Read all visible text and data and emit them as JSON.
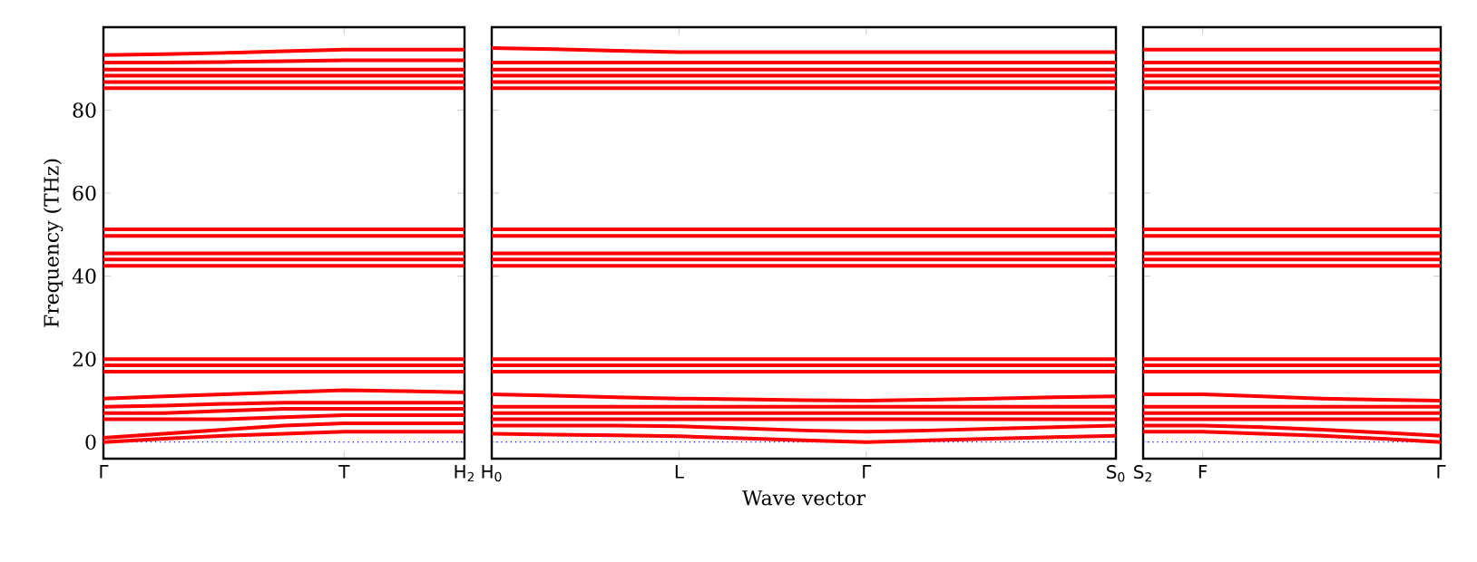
{
  "chart_data": [
    {
      "type": "line",
      "ylabel": "Frequency (THz)",
      "color": "#ff0000",
      "categories": [
        "Γ",
        null,
        null,
        null,
        "T",
        null,
        "H$_{2}$"
      ],
      "ylim": [
        -4,
        100
      ],
      "yticks": [
        0,
        20,
        40,
        60,
        80
      ],
      "ref_lines": [
        {
          "axis": "y",
          "value": 0,
          "color": "#0000ff",
          "line_style": "dotted"
        }
      ],
      "series": [
        {
          "values": [
            0,
            0.8,
            1.5,
            2,
            2.5,
            2.5,
            2.5
          ]
        },
        {
          "values": [
            1,
            2,
            3,
            4,
            4.5,
            4.5,
            4.5
          ]
        },
        {
          "values": [
            5.5,
            5.5,
            5.5,
            6,
            6.5,
            6.5,
            6.5
          ]
        },
        {
          "values": [
            7,
            7,
            7.5,
            8,
            8,
            8,
            8
          ]
        },
        {
          "values": [
            8.5,
            8.8,
            9.2,
            9.5,
            9.5,
            9.5,
            9.5
          ]
        },
        {
          "values": [
            10.5,
            11,
            11.5,
            12,
            12.5,
            12.3,
            12
          ]
        },
        {
          "values": [
            17,
            17,
            17,
            17,
            17,
            17,
            17
          ]
        },
        {
          "values": [
            18.5,
            18.5,
            18.5,
            18.5,
            18.5,
            18.5,
            18.5
          ]
        },
        {
          "values": [
            20,
            20,
            20,
            20,
            20,
            20,
            20
          ]
        },
        {
          "values": [
            42.5,
            42.5,
            42.5,
            42.5,
            42.5,
            42.5,
            42.5
          ]
        },
        {
          "values": [
            44,
            44,
            44,
            44,
            44,
            44,
            44
          ]
        },
        {
          "values": [
            45.5,
            45.5,
            45.5,
            45.5,
            45.5,
            45.5,
            45.5
          ]
        },
        {
          "values": [
            49.7,
            49.7,
            49.7,
            49.7,
            49.7,
            49.7,
            49.7
          ]
        },
        {
          "values": [
            51.3,
            51.3,
            51.3,
            51.3,
            51.3,
            51.3,
            51.3
          ]
        },
        {
          "values": [
            85.3,
            85.3,
            85.3,
            85.3,
            85.3,
            85.3,
            85.3
          ]
        },
        {
          "values": [
            86.8,
            86.8,
            86.8,
            86.8,
            86.8,
            86.8,
            86.8
          ]
        },
        {
          "values": [
            88.3,
            88.3,
            88.3,
            88.3,
            88.3,
            88.3,
            88.3
          ]
        },
        {
          "values": [
            89.8,
            89.8,
            89.8,
            89.8,
            89.8,
            89.8,
            89.8
          ]
        },
        {
          "values": [
            91.5,
            91.5,
            91.6,
            91.8,
            92,
            92,
            92
          ]
        },
        {
          "values": [
            93.3,
            93.5,
            93.8,
            94.2,
            94.6,
            94.6,
            94.6
          ]
        }
      ]
    },
    {
      "type": "line",
      "xlabel": "Wave vector",
      "color": "#ff0000",
      "categories": [
        "H$_{0}$",
        null,
        null,
        "L",
        null,
        null,
        "Γ",
        null,
        null,
        null,
        "S$_{0}$"
      ],
      "ylim": [
        -4,
        100
      ],
      "tick_labels": "x",
      "yticks": [
        {
          "value": 0,
          "label": null
        },
        {
          "value": 20,
          "label": null
        },
        {
          "value": 40,
          "label": null
        },
        {
          "value": 60,
          "label": null
        },
        {
          "value": 80,
          "label": null
        }
      ],
      "ref_lines": [
        {
          "axis": "y",
          "value": 0,
          "color": "#0000ff",
          "line_style": "dotted"
        }
      ],
      "series": [
        {
          "values": [
            2,
            1.8,
            1.6,
            1.4,
            0.9,
            0.4,
            0,
            0.4,
            0.8,
            1.2,
            1.5
          ]
        },
        {
          "values": [
            4,
            4,
            4,
            3.8,
            3.3,
            2.8,
            2.5,
            2.8,
            3.2,
            3.6,
            4
          ]
        },
        {
          "values": [
            5.5,
            5.5,
            5.5,
            5.5,
            5.5,
            5.5,
            5.5,
            5.5,
            5.5,
            5.5,
            5.5
          ]
        },
        {
          "values": [
            7,
            7,
            7,
            7,
            7,
            7,
            7,
            7,
            7,
            7,
            7
          ]
        },
        {
          "values": [
            8.5,
            8.5,
            8.5,
            8.5,
            8.5,
            8.5,
            8.5,
            8.5,
            8.5,
            8.5,
            8.5
          ]
        },
        {
          "values": [
            11.5,
            11.2,
            10.8,
            10.5,
            10.3,
            10.1,
            10,
            10.2,
            10.5,
            10.8,
            11
          ]
        },
        {
          "values": [
            17,
            17,
            17,
            17,
            17,
            17,
            17,
            17,
            17,
            17,
            17
          ]
        },
        {
          "values": [
            18.5,
            18.5,
            18.5,
            18.5,
            18.5,
            18.5,
            18.5,
            18.5,
            18.5,
            18.5,
            18.5
          ]
        },
        {
          "values": [
            20,
            20,
            20,
            20,
            20,
            20,
            20,
            20,
            20,
            20,
            20
          ]
        },
        {
          "values": [
            42.5,
            42.5,
            42.5,
            42.5,
            42.5,
            42.5,
            42.5,
            42.5,
            42.5,
            42.5,
            42.5
          ]
        },
        {
          "values": [
            44,
            44,
            44,
            44,
            44,
            44,
            44,
            44,
            44,
            44,
            44
          ]
        },
        {
          "values": [
            45.5,
            45.5,
            45.5,
            45.5,
            45.5,
            45.5,
            45.5,
            45.5,
            45.5,
            45.5,
            45.5
          ]
        },
        {
          "values": [
            49.7,
            49.7,
            49.7,
            49.7,
            49.7,
            49.7,
            49.7,
            49.7,
            49.7,
            49.7,
            49.7
          ]
        },
        {
          "values": [
            51.3,
            51.3,
            51.3,
            51.3,
            51.3,
            51.3,
            51.3,
            51.3,
            51.3,
            51.3,
            51.3
          ]
        },
        {
          "values": [
            85.3,
            85.3,
            85.3,
            85.3,
            85.3,
            85.3,
            85.3,
            85.3,
            85.3,
            85.3,
            85.3
          ]
        },
        {
          "values": [
            86.8,
            86.8,
            86.8,
            86.8,
            86.8,
            86.8,
            86.8,
            86.8,
            86.8,
            86.8,
            86.8
          ]
        },
        {
          "values": [
            88.3,
            88.3,
            88.3,
            88.3,
            88.3,
            88.3,
            88.3,
            88.3,
            88.3,
            88.3,
            88.3
          ]
        },
        {
          "values": [
            89.8,
            89.8,
            89.8,
            89.8,
            89.8,
            89.8,
            89.8,
            89.8,
            89.8,
            89.8,
            89.8
          ]
        },
        {
          "values": [
            91.5,
            91.5,
            91.5,
            91.5,
            91.5,
            91.5,
            91.5,
            91.5,
            91.5,
            91.5,
            91.5
          ]
        },
        {
          "values": [
            95,
            94.7,
            94.3,
            94,
            94,
            94,
            94,
            94,
            94,
            94,
            94
          ]
        }
      ]
    },
    {
      "type": "line",
      "color": "#ff0000",
      "categories": [
        "S$_{2}$",
        "F",
        null,
        null,
        null,
        "Γ"
      ],
      "ylim": [
        -4,
        100
      ],
      "tick_labels": "x",
      "yticks": [
        {
          "value": 0,
          "label": null
        },
        {
          "value": 20,
          "label": null
        },
        {
          "value": 40,
          "label": null
        },
        {
          "value": 60,
          "label": null
        },
        {
          "value": 80,
          "label": null
        }
      ],
      "ref_lines": [
        {
          "axis": "y",
          "value": 0,
          "color": "#0000ff",
          "line_style": "dotted"
        }
      ],
      "series": [
        {
          "values": [
            2.5,
            2.5,
            2,
            1.5,
            0.8,
            0
          ]
        },
        {
          "values": [
            4,
            4,
            3.6,
            3,
            2.3,
            1.5
          ]
        },
        {
          "values": [
            5.5,
            5.5,
            5.5,
            5.5,
            5.5,
            5.5
          ]
        },
        {
          "values": [
            7,
            7,
            7,
            7,
            7,
            7
          ]
        },
        {
          "values": [
            8.5,
            8.5,
            8.5,
            8.5,
            8.5,
            8.5
          ]
        },
        {
          "values": [
            11.5,
            11.5,
            11,
            10.5,
            10.2,
            10
          ]
        },
        {
          "values": [
            17,
            17,
            17,
            17,
            17,
            17
          ]
        },
        {
          "values": [
            18.5,
            18.5,
            18.5,
            18.5,
            18.5,
            18.5
          ]
        },
        {
          "values": [
            20,
            20,
            20,
            20,
            20,
            20
          ]
        },
        {
          "values": [
            42.5,
            42.5,
            42.5,
            42.5,
            42.5,
            42.5
          ]
        },
        {
          "values": [
            44,
            44,
            44,
            44,
            44,
            44
          ]
        },
        {
          "values": [
            45.5,
            45.5,
            45.5,
            45.5,
            45.5,
            45.5
          ]
        },
        {
          "values": [
            49.7,
            49.7,
            49.7,
            49.7,
            49.7,
            49.7
          ]
        },
        {
          "values": [
            51.3,
            51.3,
            51.3,
            51.3,
            51.3,
            51.3
          ]
        },
        {
          "values": [
            85.3,
            85.3,
            85.3,
            85.3,
            85.3,
            85.3
          ]
        },
        {
          "values": [
            86.8,
            86.8,
            86.8,
            86.8,
            86.8,
            86.8
          ]
        },
        {
          "values": [
            88.3,
            88.3,
            88.3,
            88.3,
            88.3,
            88.3
          ]
        },
        {
          "values": [
            89.8,
            89.8,
            89.8,
            89.8,
            89.8,
            89.8
          ]
        },
        {
          "values": [
            91.5,
            91.5,
            91.5,
            91.5,
            91.5,
            91.5
          ]
        },
        {
          "values": [
            94.6,
            94.6,
            94.6,
            94.6,
            94.6,
            94.6
          ]
        }
      ]
    }
  ]
}
